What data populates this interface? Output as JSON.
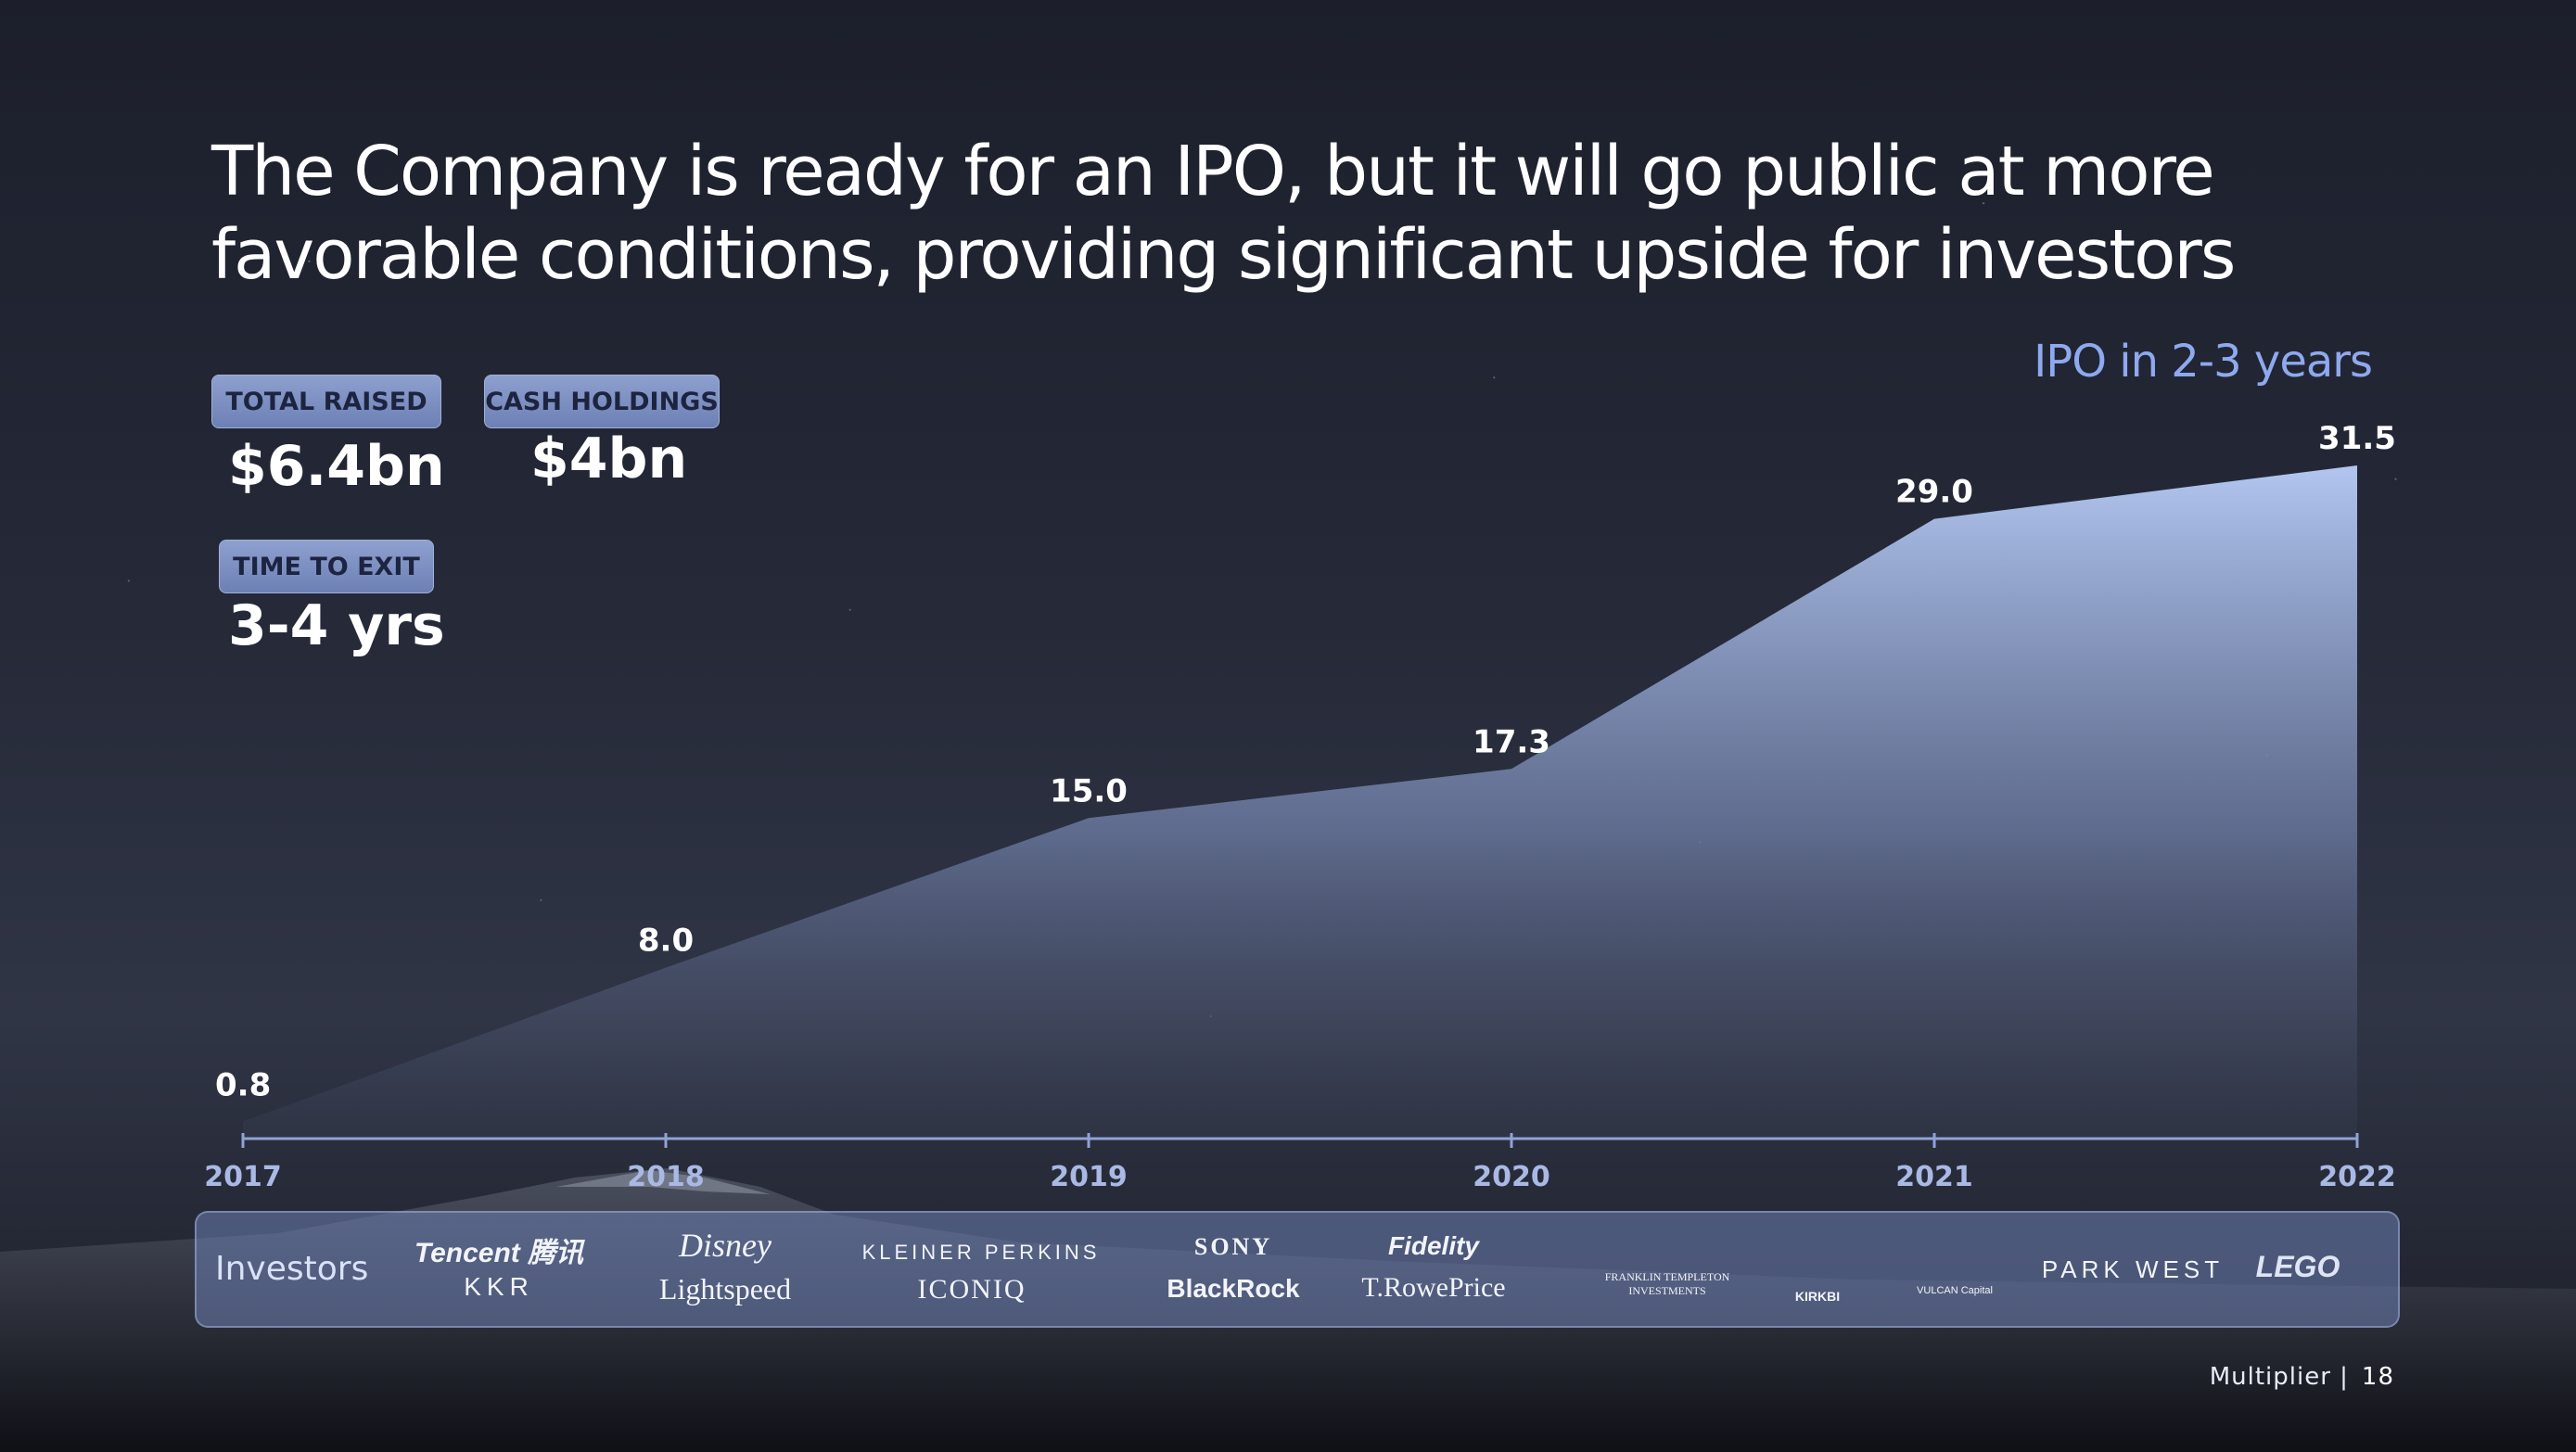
{
  "title": "The Company is ready for an IPO, but it will go public at more favorable conditions, providing significant upside for investors",
  "stats": {
    "total_raised": {
      "label": "TOTAL RAISED",
      "value": "$6.4bn"
    },
    "cash_holdings": {
      "label": "CASH HOLDINGS",
      "value": "$4bn"
    },
    "time_to_exit": {
      "label": "TIME TO EXIT",
      "value": "3-4 yrs"
    }
  },
  "ipo_note": "IPO in 2-3 years",
  "chart_data": {
    "type": "area",
    "title": "",
    "xlabel": "",
    "ylabel": "",
    "x": [
      "2017",
      "2018",
      "2019",
      "2020",
      "2021",
      "2022"
    ],
    "values": [
      0.8,
      8.0,
      15.0,
      17.3,
      29.0,
      31.5
    ],
    "value_labels": [
      "0.8",
      "8.0",
      "15.0",
      "17.3",
      "29.0",
      "31.5"
    ],
    "ylim": [
      0,
      31.5
    ],
    "grid": false,
    "legend": "none",
    "colors": {
      "area_top": "#b4c9f4",
      "area_bottom": "#3d4358",
      "axis": "#8fa3d6"
    }
  },
  "investors": {
    "label": "Investors",
    "logos": [
      "Tencent 腾讯",
      "KKR",
      "Disney",
      "Lightspeed",
      "KLEINER PERKINS",
      "ICONIQ",
      "SONY",
      "BlackRock",
      "Fidelity",
      "T.RowePrice",
      "FRANKLIN TEMPLETON INVESTMENTS",
      "KIRKBI",
      "VULCAN Capital",
      "PARK WEST",
      "LEGO"
    ]
  },
  "footer": {
    "brand": "Multiplier |",
    "page": "18"
  }
}
